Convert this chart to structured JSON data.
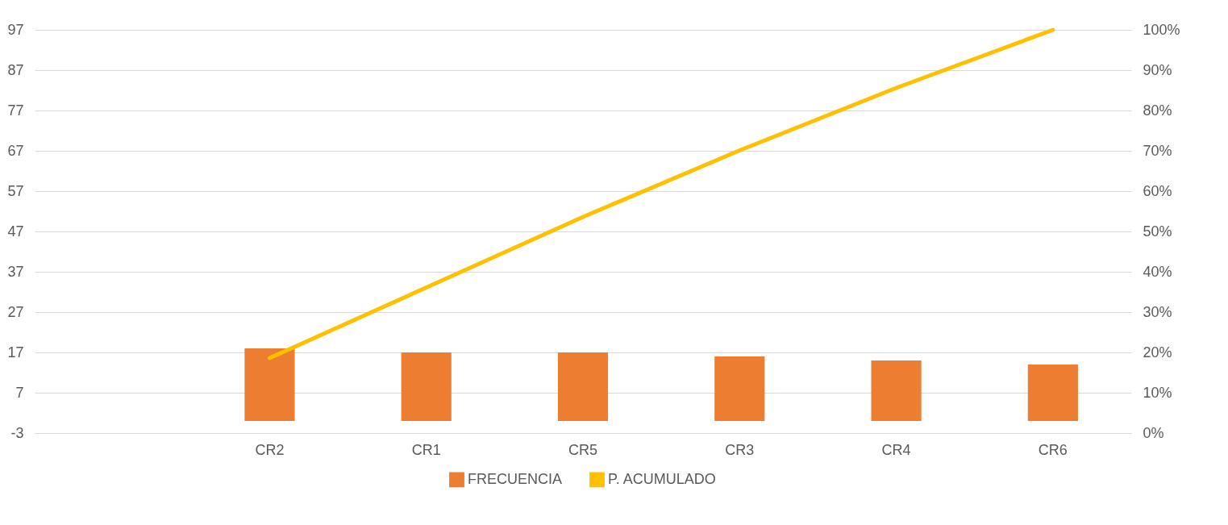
{
  "chart_data": {
    "type": "bar",
    "categories": [
      null,
      "CR2",
      "CR1",
      "CR5",
      "CR3",
      "CR4",
      "CR6"
    ],
    "series": [
      {
        "name": "FRECUENCIA",
        "color": "#ed7d31",
        "values": [
          null,
          18,
          17,
          17,
          16,
          15,
          14
        ]
      },
      {
        "name": "P. ACUMULADO",
        "type": "line",
        "axis": "y2",
        "color": "#ffc000",
        "values": [
          null,
          18.6,
          36.1,
          53.6,
          70.1,
          85.6,
          100
        ]
      }
    ],
    "ylim": [
      -3,
      97
    ],
    "yticks": [
      -3,
      7,
      17,
      27,
      37,
      47,
      57,
      67,
      77,
      87,
      97
    ],
    "y2lim": [
      0,
      100
    ],
    "y2ticks": [
      {
        "value": 0,
        "label": "0%"
      },
      {
        "value": 10,
        "label": "10%"
      },
      {
        "value": 20,
        "label": "20%"
      },
      {
        "value": 30,
        "label": "30%"
      },
      {
        "value": 40,
        "label": "40%"
      },
      {
        "value": 50,
        "label": "50%"
      },
      {
        "value": 60,
        "label": "60%"
      },
      {
        "value": 70,
        "label": "70%"
      },
      {
        "value": 80,
        "label": "80%"
      },
      {
        "value": 90,
        "label": "90%"
      },
      {
        "value": 100,
        "label": "100%"
      }
    ],
    "grid": true,
    "legend": "bottom"
  }
}
